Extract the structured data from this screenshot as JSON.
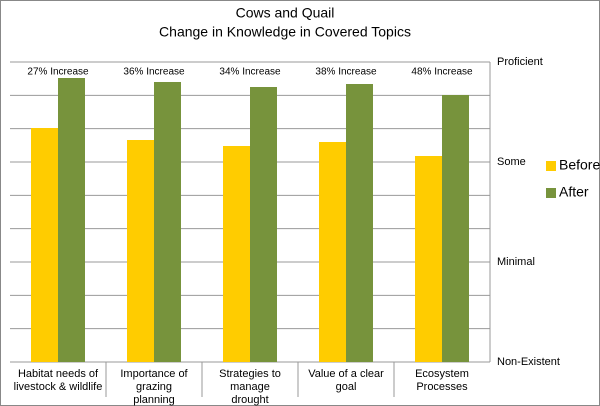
{
  "chart_data": {
    "type": "bar",
    "title": "Cows and Quail",
    "subtitle": "Change in Knowledge in Covered Topics",
    "categories": [
      "Habitat needs of\nlivestock & wildlife",
      "Importance of grazing\nplanning",
      "Strategies to manage\ndrought",
      "Value of a clear goal",
      "Ecosystem Processes"
    ],
    "series": [
      {
        "name": "Before",
        "color": "#ffcc00",
        "values": [
          2.34,
          2.22,
          2.16,
          2.2,
          2.06
        ]
      },
      {
        "name": "After",
        "color": "#77933c",
        "values": [
          2.84,
          2.8,
          2.75,
          2.78,
          2.67
        ]
      }
    ],
    "annotations": [
      "27% Increase",
      "36% Increase",
      "34% Increase",
      "38% Increase",
      "48% Increase"
    ],
    "ylim": [
      0,
      3
    ],
    "yticks": [
      {
        "value": 0,
        "label": "Non-Existent"
      },
      {
        "value": 1,
        "label": "Minimal"
      },
      {
        "value": 2,
        "label": "Some"
      },
      {
        "value": 3,
        "label": "Proficient"
      }
    ],
    "grid": true,
    "grid_subdivisions": 3,
    "legend": "right"
  }
}
